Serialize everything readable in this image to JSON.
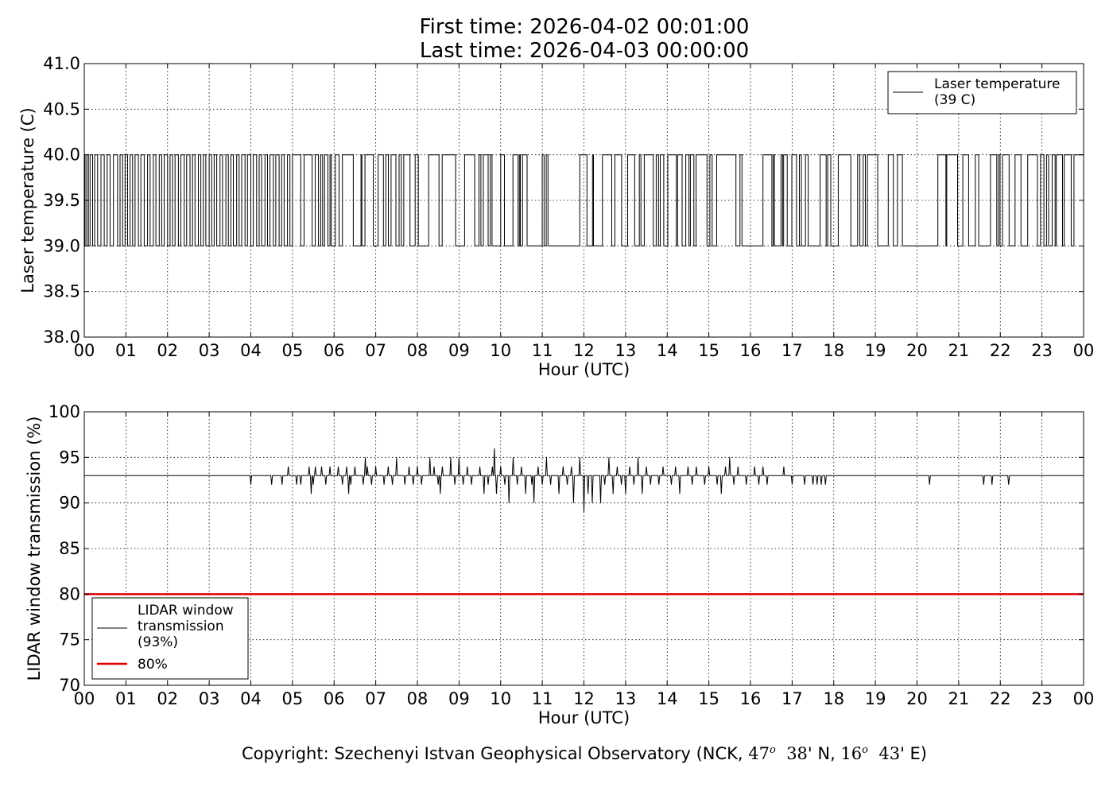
{
  "header": {
    "first_time": "First time: 2026-04-02 00:01:00",
    "last_time": "Last time: 2026-04-03 00:00:00"
  },
  "footer": {
    "prefix": "Copyright: Szechenyi Istvan Geophysical Observatory (NCK, ",
    "lat_deg": "47",
    "lat_min": "38",
    "lat_suffix": "' N, ",
    "lon_deg": "16",
    "lon_min": "43",
    "lon_suffix": "' E)",
    "degree_mark": "o"
  },
  "chart_data": [
    {
      "type": "line",
      "xlabel": "Hour (UTC)",
      "ylabel": "Laser temperature (C)",
      "xlim": [
        0,
        24
      ],
      "ylim": [
        38.0,
        41.0
      ],
      "x_ticks": [
        0,
        1,
        2,
        3,
        4,
        5,
        6,
        7,
        8,
        9,
        10,
        11,
        12,
        13,
        14,
        15,
        16,
        17,
        18,
        19,
        20,
        21,
        22,
        23,
        24
      ],
      "x_tick_labels": [
        "00",
        "01",
        "02",
        "03",
        "04",
        "05",
        "06",
        "07",
        "08",
        "09",
        "10",
        "11",
        "12",
        "13",
        "14",
        "15",
        "16",
        "17",
        "18",
        "19",
        "20",
        "21",
        "22",
        "23",
        "00"
      ],
      "y_ticks": [
        38.0,
        38.5,
        39.0,
        39.5,
        40.0,
        40.5,
        41.0
      ],
      "y_tick_labels": [
        "38.0",
        "38.5",
        "39.0",
        "39.5",
        "40.0",
        "40.5",
        "41.0"
      ],
      "grid": true,
      "legend_position": "top-right",
      "series": [
        {
          "name": "Laser temperature\n(39 C)",
          "color": "#000000",
          "step_segments_hours": [
            [
              0.0,
              0.02,
              40
            ],
            [
              0.02,
              0.06,
              39
            ],
            [
              0.06,
              0.1,
              40
            ],
            [
              0.1,
              0.14,
              39
            ],
            [
              0.14,
              0.2,
              40
            ],
            [
              0.2,
              0.25,
              39
            ],
            [
              0.25,
              0.32,
              40
            ],
            [
              0.32,
              0.4,
              39
            ],
            [
              0.4,
              0.48,
              40
            ],
            [
              0.48,
              0.55,
              39
            ],
            [
              0.55,
              0.62,
              40
            ],
            [
              0.62,
              0.7,
              39
            ],
            [
              0.7,
              0.8,
              40
            ],
            [
              0.8,
              0.86,
              39
            ],
            [
              0.86,
              0.92,
              40
            ],
            [
              0.92,
              0.98,
              39
            ],
            [
              0.98,
              1.04,
              40
            ],
            [
              1.04,
              1.1,
              39
            ],
            [
              1.1,
              1.16,
              40
            ],
            [
              1.16,
              1.22,
              39
            ],
            [
              1.22,
              1.3,
              40
            ],
            [
              1.3,
              1.36,
              39
            ],
            [
              1.36,
              1.44,
              40
            ],
            [
              1.44,
              1.52,
              39
            ],
            [
              1.52,
              1.58,
              40
            ],
            [
              1.58,
              1.66,
              39
            ],
            [
              1.66,
              1.72,
              40
            ],
            [
              1.72,
              1.8,
              39
            ],
            [
              1.8,
              1.86,
              40
            ],
            [
              1.86,
              1.92,
              39
            ],
            [
              1.92,
              2.0,
              40
            ],
            [
              2.0,
              2.06,
              39
            ],
            [
              2.06,
              2.12,
              40
            ],
            [
              2.12,
              2.18,
              39
            ],
            [
              2.18,
              2.26,
              40
            ],
            [
              2.26,
              2.32,
              39
            ],
            [
              2.32,
              2.4,
              40
            ],
            [
              2.4,
              2.46,
              39
            ],
            [
              2.46,
              2.54,
              40
            ],
            [
              2.54,
              2.6,
              39
            ],
            [
              2.6,
              2.66,
              40
            ],
            [
              2.66,
              2.74,
              39
            ],
            [
              2.74,
              2.8,
              40
            ],
            [
              2.8,
              2.86,
              39
            ],
            [
              2.86,
              2.92,
              40
            ],
            [
              2.92,
              3.0,
              39
            ],
            [
              3.0,
              3.06,
              40
            ],
            [
              3.06,
              3.12,
              39
            ],
            [
              3.12,
              3.18,
              40
            ],
            [
              3.18,
              3.26,
              39
            ],
            [
              3.26,
              3.32,
              40
            ],
            [
              3.32,
              3.4,
              39
            ],
            [
              3.4,
              3.46,
              40
            ],
            [
              3.46,
              3.52,
              39
            ],
            [
              3.52,
              3.58,
              40
            ],
            [
              3.58,
              3.66,
              39
            ],
            [
              3.66,
              3.72,
              40
            ],
            [
              3.72,
              3.78,
              39
            ],
            [
              3.78,
              3.86,
              40
            ],
            [
              3.86,
              3.92,
              39
            ],
            [
              3.92,
              4.0,
              40
            ],
            [
              4.0,
              4.06,
              39
            ],
            [
              4.06,
              4.14,
              40
            ],
            [
              4.14,
              4.2,
              39
            ],
            [
              4.2,
              4.26,
              40
            ],
            [
              4.26,
              4.34,
              39
            ],
            [
              4.34,
              4.4,
              40
            ],
            [
              4.4,
              4.46,
              39
            ],
            [
              4.46,
              4.54,
              40
            ],
            [
              4.54,
              4.6,
              39
            ],
            [
              4.6,
              4.68,
              40
            ],
            [
              4.68,
              4.74,
              39
            ],
            [
              4.74,
              4.8,
              40
            ],
            [
              4.8,
              4.88,
              39
            ],
            [
              4.88,
              4.94,
              40
            ],
            [
              4.94,
              5.0,
              39
            ]
          ],
          "level_low": 39.0,
          "level_high": 40.0,
          "dense_toggling_note_hours": [
            [
              5.0,
              11.0
            ],
            [
              11.0,
              15.0
            ],
            [
              16.3,
              19.5
            ],
            [
              20.5,
              24.0
            ]
          ],
          "flat_low_intervals_hours": [
            [
              10.6,
              11.0
            ],
            [
              11.1,
              11.9
            ],
            [
              15.8,
              16.3
            ],
            [
              19.6,
              20.5
            ]
          ]
        }
      ]
    },
    {
      "type": "line",
      "xlabel": "Hour (UTC)",
      "ylabel": "LIDAR window transmission (%)",
      "xlim": [
        0,
        24
      ],
      "ylim": [
        70,
        100
      ],
      "x_ticks": [
        0,
        1,
        2,
        3,
        4,
        5,
        6,
        7,
        8,
        9,
        10,
        11,
        12,
        13,
        14,
        15,
        16,
        17,
        18,
        19,
        20,
        21,
        22,
        23,
        24
      ],
      "x_tick_labels": [
        "00",
        "01",
        "02",
        "03",
        "04",
        "05",
        "06",
        "07",
        "08",
        "09",
        "10",
        "11",
        "12",
        "13",
        "14",
        "15",
        "16",
        "17",
        "18",
        "19",
        "20",
        "21",
        "22",
        "23",
        "00"
      ],
      "y_ticks": [
        70,
        75,
        80,
        85,
        90,
        95,
        100
      ],
      "y_tick_labels": [
        "70",
        "75",
        "80",
        "85",
        "90",
        "95",
        "100"
      ],
      "grid": true,
      "legend_position": "bottom-left",
      "series": [
        {
          "name": "LIDAR window\ntransmission\n(93%)",
          "color": "#000000",
          "baseline": 93,
          "spikes": [
            [
              4.0,
              92
            ],
            [
              4.5,
              92
            ],
            [
              4.75,
              92
            ],
            [
              4.9,
              94
            ],
            [
              5.1,
              92
            ],
            [
              5.2,
              92
            ],
            [
              5.3,
              93
            ],
            [
              5.4,
              94
            ],
            [
              5.45,
              91
            ],
            [
              5.5,
              92
            ],
            [
              5.55,
              94
            ],
            [
              5.6,
              93
            ],
            [
              5.7,
              94
            ],
            [
              5.8,
              92
            ],
            [
              5.9,
              94
            ],
            [
              6.0,
              93
            ],
            [
              6.1,
              94
            ],
            [
              6.2,
              92
            ],
            [
              6.3,
              94
            ],
            [
              6.35,
              91
            ],
            [
              6.4,
              92
            ],
            [
              6.5,
              94
            ],
            [
              6.6,
              93
            ],
            [
              6.7,
              92
            ],
            [
              6.75,
              95
            ],
            [
              6.8,
              94
            ],
            [
              6.9,
              92
            ],
            [
              7.0,
              94
            ],
            [
              7.1,
              93
            ],
            [
              7.2,
              92
            ],
            [
              7.3,
              94
            ],
            [
              7.4,
              92
            ],
            [
              7.5,
              95
            ],
            [
              7.6,
              93
            ],
            [
              7.7,
              92
            ],
            [
              7.8,
              94
            ],
            [
              7.9,
              92
            ],
            [
              8.0,
              94
            ],
            [
              8.1,
              92
            ],
            [
              8.2,
              93
            ],
            [
              8.3,
              95
            ],
            [
              8.4,
              94
            ],
            [
              8.5,
              92
            ],
            [
              8.55,
              91
            ],
            [
              8.6,
              94
            ],
            [
              8.7,
              93
            ],
            [
              8.8,
              95
            ],
            [
              8.9,
              92
            ],
            [
              9.0,
              95
            ],
            [
              9.1,
              92
            ],
            [
              9.2,
              94
            ],
            [
              9.3,
              92
            ],
            [
              9.4,
              93
            ],
            [
              9.5,
              94
            ],
            [
              9.6,
              91
            ],
            [
              9.7,
              92
            ],
            [
              9.8,
              94
            ],
            [
              9.85,
              96
            ],
            [
              9.9,
              91
            ],
            [
              10.0,
              94
            ],
            [
              10.1,
              92
            ],
            [
              10.2,
              90
            ],
            [
              10.3,
              95
            ],
            [
              10.4,
              92
            ],
            [
              10.5,
              94
            ],
            [
              10.6,
              91
            ],
            [
              10.7,
              93
            ],
            [
              10.75,
              92
            ],
            [
              10.8,
              90
            ],
            [
              10.9,
              94
            ],
            [
              11.0,
              92
            ],
            [
              11.1,
              95
            ],
            [
              11.2,
              92
            ],
            [
              11.3,
              93
            ],
            [
              11.4,
              91
            ],
            [
              11.5,
              94
            ],
            [
              11.6,
              92
            ],
            [
              11.7,
              94
            ],
            [
              11.75,
              90
            ],
            [
              11.8,
              93
            ],
            [
              11.9,
              95
            ],
            [
              12.0,
              89
            ],
            [
              12.05,
              93
            ],
            [
              12.1,
              91
            ],
            [
              12.2,
              90
            ],
            [
              12.3,
              93
            ],
            [
              12.4,
              90
            ],
            [
              12.5,
              92
            ],
            [
              12.6,
              95
            ],
            [
              12.7,
              91
            ],
            [
              12.8,
              94
            ],
            [
              12.9,
              92
            ],
            [
              13.0,
              91
            ],
            [
              13.1,
              94
            ],
            [
              13.2,
              92
            ],
            [
              13.3,
              95
            ],
            [
              13.4,
              91
            ],
            [
              13.5,
              94
            ],
            [
              13.6,
              92
            ],
            [
              13.7,
              93
            ],
            [
              13.8,
              92
            ],
            [
              13.9,
              94
            ],
            [
              14.0,
              93
            ],
            [
              14.1,
              92
            ],
            [
              14.2,
              94
            ],
            [
              14.3,
              91
            ],
            [
              14.4,
              93
            ],
            [
              14.5,
              94
            ],
            [
              14.6,
              92
            ],
            [
              14.7,
              94
            ],
            [
              14.8,
              93
            ],
            [
              14.9,
              92
            ],
            [
              15.0,
              94
            ],
            [
              15.1,
              93
            ],
            [
              15.2,
              92
            ],
            [
              15.3,
              91
            ],
            [
              15.4,
              94
            ],
            [
              15.5,
              95
            ],
            [
              15.6,
              92
            ],
            [
              15.7,
              94
            ],
            [
              15.8,
              93
            ],
            [
              15.9,
              92
            ],
            [
              16.0,
              93
            ],
            [
              16.1,
              94
            ],
            [
              16.2,
              92
            ],
            [
              16.3,
              94
            ],
            [
              16.4,
              92
            ],
            [
              16.5,
              93
            ],
            [
              16.8,
              94
            ],
            [
              17.0,
              92
            ],
            [
              17.3,
              92
            ],
            [
              17.5,
              92
            ],
            [
              17.6,
              92
            ],
            [
              17.7,
              92
            ],
            [
              17.8,
              92
            ],
            [
              20.3,
              92
            ],
            [
              21.6,
              92
            ],
            [
              21.8,
              92
            ],
            [
              22.2,
              92
            ]
          ]
        },
        {
          "name": "80%",
          "color": "#e00000",
          "constant": 80
        }
      ]
    }
  ]
}
